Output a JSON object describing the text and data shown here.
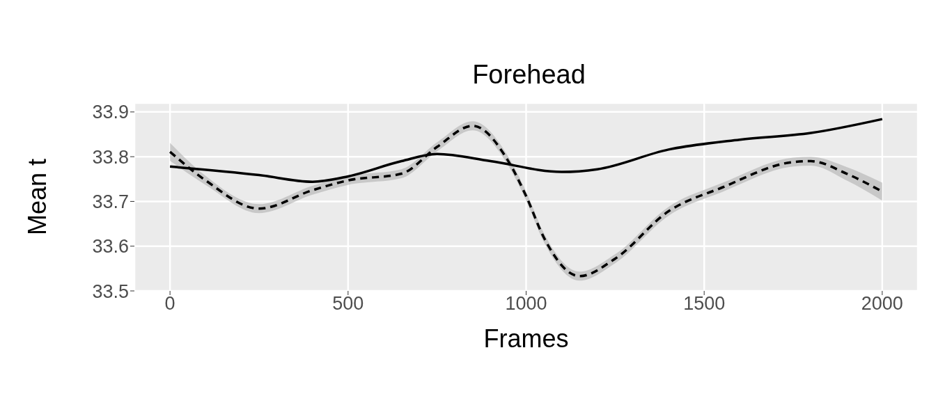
{
  "chart_data": {
    "type": "line",
    "title": "Forehead",
    "xlabel": "Frames",
    "ylabel": "Mean t",
    "xlim": [
      -100,
      2100
    ],
    "ylim": [
      33.5,
      33.92
    ],
    "xticks": [
      0,
      500,
      1000,
      1500,
      2000
    ],
    "yticks": [
      33.5,
      33.6,
      33.7,
      33.8,
      33.9
    ],
    "grid": true,
    "legend": false,
    "marker": "none",
    "series": [
      {
        "color": "#000000",
        "line_style": "solid",
        "x": [
          0,
          250,
          400,
          500,
          650,
          750,
          900,
          1100,
          1200,
          1400,
          1600,
          1800,
          2000
        ],
        "values": [
          33.778,
          33.759,
          33.744,
          33.756,
          33.79,
          33.806,
          33.79,
          33.766,
          33.772,
          33.816,
          33.838,
          33.853,
          33.884
        ]
      },
      {
        "color": "#000000",
        "line_style": "dashed",
        "x": [
          0,
          100,
          250,
          400,
          500,
          650,
          750,
          850,
          950,
          1000,
          1050,
          1150,
          1250,
          1400,
          1550,
          1750,
          1800,
          1900,
          2000
        ],
        "values": [
          33.811,
          33.747,
          33.684,
          33.725,
          33.747,
          33.762,
          33.822,
          33.869,
          33.79,
          33.712,
          33.619,
          33.533,
          33.572,
          33.678,
          33.731,
          33.788,
          33.79,
          33.762,
          33.722
        ],
        "lower": [
          33.791,
          33.737,
          33.674,
          33.715,
          33.737,
          33.752,
          33.812,
          33.859,
          33.78,
          33.702,
          33.609,
          33.523,
          33.562,
          33.668,
          33.721,
          33.778,
          33.78,
          33.747,
          33.702
        ],
        "upper": [
          33.831,
          33.757,
          33.694,
          33.735,
          33.757,
          33.772,
          33.832,
          33.879,
          33.8,
          33.722,
          33.629,
          33.543,
          33.582,
          33.688,
          33.741,
          33.798,
          33.8,
          33.777,
          33.742
        ]
      }
    ]
  }
}
